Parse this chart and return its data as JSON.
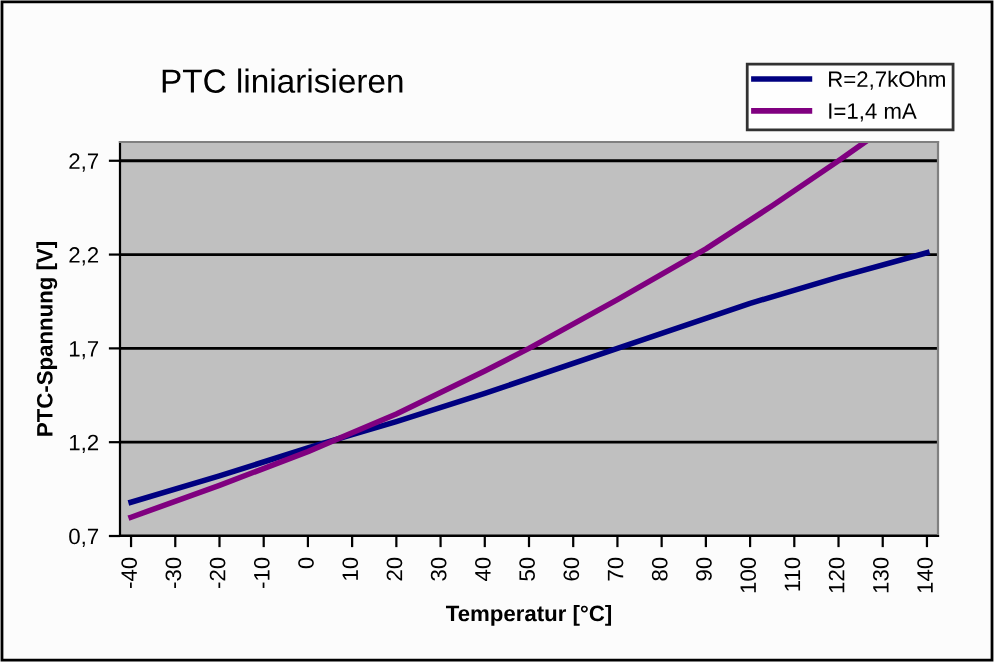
{
  "chart_data": {
    "type": "line",
    "title": "PTC liniarisieren",
    "xlabel": "Temperatur [°C]",
    "ylabel": "PTC-Spannung [V]",
    "series": [
      {
        "name": "R=2,7kOhm",
        "color": "#000080",
        "x": [
          -40,
          -20,
          0,
          10,
          20,
          40,
          70,
          100,
          120,
          140
        ],
        "values": [
          0.88,
          1.02,
          1.17,
          1.24,
          1.31,
          1.46,
          1.7,
          1.94,
          2.08,
          2.21
        ]
      },
      {
        "name": "I=1,4 mA",
        "color": "#800080",
        "x": [
          -40,
          -20,
          0,
          10,
          20,
          40,
          50,
          70,
          90,
          105,
          120,
          126
        ],
        "values": [
          0.8,
          0.97,
          1.15,
          1.25,
          1.35,
          1.58,
          1.7,
          1.96,
          2.23,
          2.46,
          2.7,
          2.8
        ]
      }
    ],
    "xlim": [
      -42.5,
      142.5
    ],
    "xticks": [
      -40,
      -30,
      -20,
      -10,
      0,
      10,
      20,
      30,
      40,
      50,
      60,
      70,
      80,
      90,
      100,
      110,
      120,
      130,
      140
    ],
    "ylim": [
      0.7,
      2.8
    ],
    "yticks": [
      {
        "value": 0.7,
        "label": "0,7"
      },
      {
        "value": 1.2,
        "label": "1,2"
      },
      {
        "value": 1.7,
        "label": "1,7"
      },
      {
        "value": 2.2,
        "label": "2,2"
      },
      {
        "value": 2.7,
        "label": "2,7"
      }
    ],
    "grid": "y",
    "legend": "top right",
    "marker": "none",
    "line_style": "solid"
  }
}
